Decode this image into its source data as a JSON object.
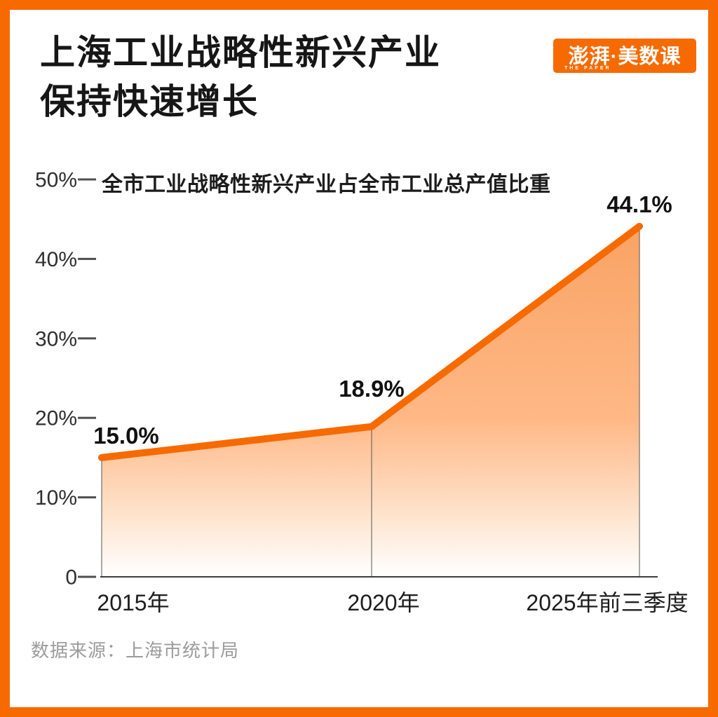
{
  "colors": {
    "accent": "#F66A00",
    "area_fill_top": "#F9A364",
    "area_fill_mid": "#FFB886",
    "area_fill_bottom": "#FFFFFF",
    "axis_line": "#3D3D3D",
    "divider_line": "#555555",
    "title_text": "#161616",
    "source_text": "#9C9C9C"
  },
  "header": {
    "title_line1": "上海工业战略性新兴产业",
    "title_line2": "保持快速增长",
    "logo": {
      "text": "澎湃·美数课",
      "subtext": "THE PAPER"
    }
  },
  "chart_data": {
    "type": "area",
    "title": "全市工业战略性新兴产业占全市工业总产值比重",
    "categories": [
      "2015年",
      "2020年",
      "2025年前三季度"
    ],
    "values": [
      15.0,
      18.9,
      44.1
    ],
    "value_labels": [
      "15.0%",
      "18.9%",
      "44.1%"
    ],
    "ylim": [
      0,
      50
    ],
    "yticks": [
      0,
      10,
      20,
      30,
      40,
      50
    ],
    "ytick_labels": [
      "0",
      "10%",
      "20%",
      "30%",
      "40%",
      "50%"
    ],
    "grid": false,
    "legend_position": "top-left",
    "line_color": "#F66A00"
  },
  "source": {
    "label": "数据来源：上海市统计局"
  }
}
